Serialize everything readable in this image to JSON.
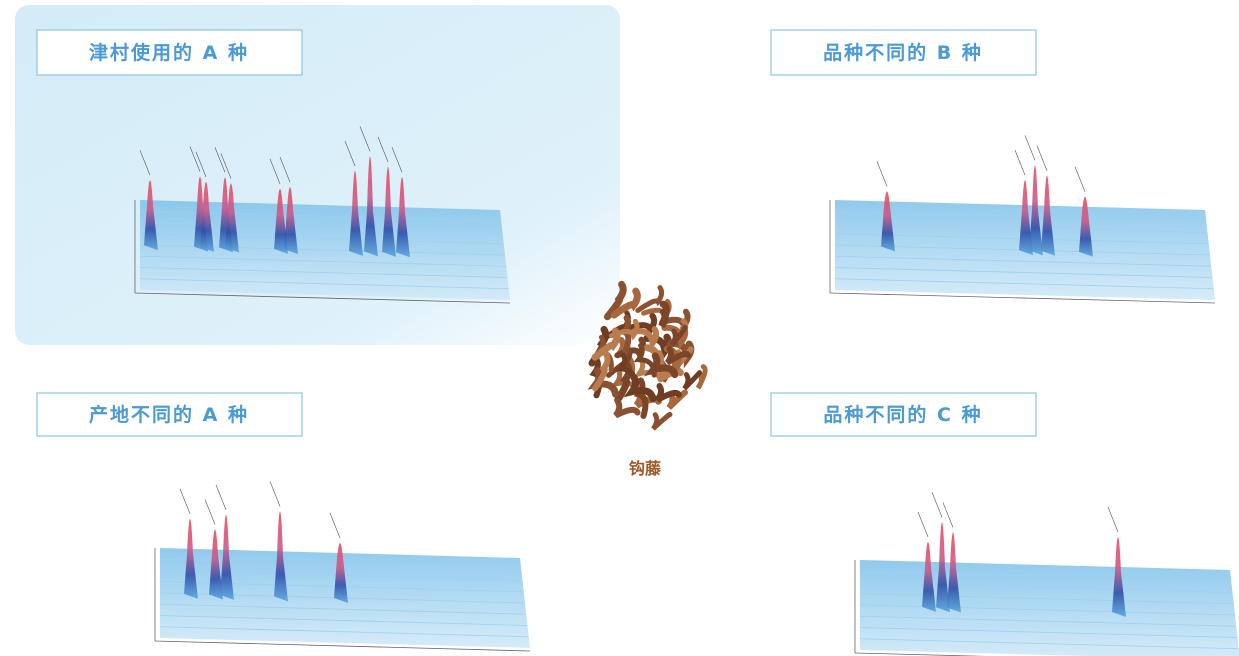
{
  "panels": [
    {
      "label": "津村使用的 A 种"
    },
    {
      "label": "品种不同的 B 种"
    },
    {
      "label": "产地不同的 A 种"
    },
    {
      "label": "品种不同的 C 种"
    }
  ],
  "center": {
    "label": "钩藤"
  }
}
